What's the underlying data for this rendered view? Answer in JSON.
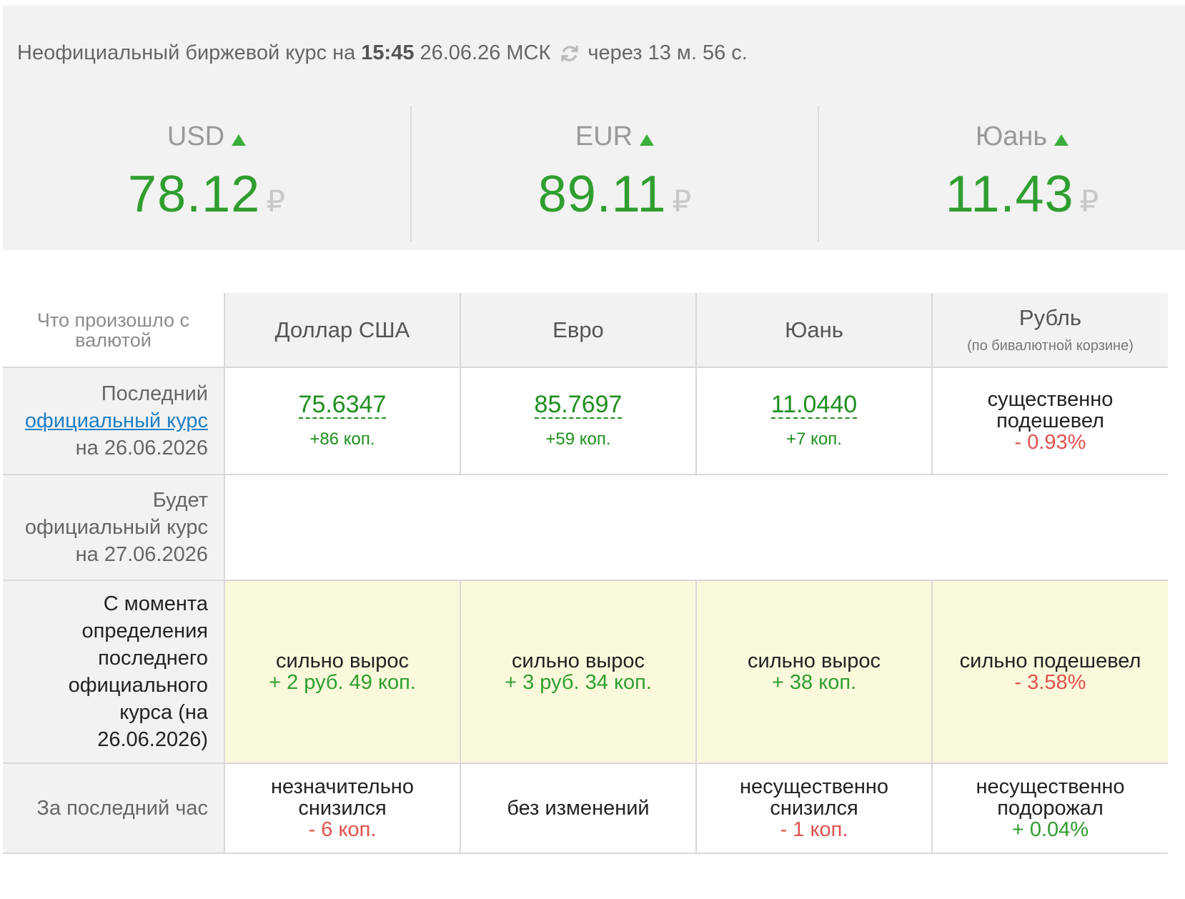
{
  "ticker": {
    "prefix": "Неофициальный биржевой курс на",
    "time": "15:45",
    "date_tz": "26.06.26 МСК",
    "refresh_text": "через 13 м. 56 с.",
    "quotes": [
      {
        "name": "USD",
        "value": "78.12",
        "currency_sign": "₽",
        "trend": "up"
      },
      {
        "name": "EUR",
        "value": "89.11",
        "currency_sign": "₽",
        "trend": "up"
      },
      {
        "name": "Юань",
        "value": "11.43",
        "currency_sign": "₽",
        "trend": "up"
      }
    ]
  },
  "table": {
    "corner": "Что произошло с валютой",
    "headers": [
      {
        "label": "Доллар США"
      },
      {
        "label": "Евро"
      },
      {
        "label": "Юань"
      },
      {
        "label": "Рубль",
        "sub": "(по бивалютной корзине)"
      }
    ],
    "rows": {
      "last_official": {
        "label_line1": "Последний",
        "label_link": "официальный курс",
        "label_line3": "на 26.06.2026",
        "cells": [
          {
            "value": "75.6347",
            "delta": "+86 коп."
          },
          {
            "value": "85.7697",
            "delta": "+59 коп."
          },
          {
            "value": "11.0440",
            "delta": "+7 коп."
          },
          {
            "text": "существенно подешевел",
            "delta": "- 0.93%"
          }
        ]
      },
      "next_official": {
        "label_line1": "Будет",
        "label_line2": "официальный курс",
        "label_line3": "на 27.06.2026"
      },
      "since_official": {
        "label": "С момента определения последнего официального курса (на 26.06.2026)",
        "cells": [
          {
            "text": "сильно вырос",
            "delta": "+ 2 руб. 49 коп."
          },
          {
            "text": "сильно вырос",
            "delta": "+ 3 руб. 34 коп."
          },
          {
            "text": "сильно вырос",
            "delta": "+ 38 коп."
          },
          {
            "text": "сильно подешевел",
            "delta": "- 3.58%"
          }
        ]
      },
      "last_hour": {
        "label": "За последний час",
        "cells": [
          {
            "text": "незначительно снизился",
            "delta": "- 6 коп."
          },
          {
            "text": "без изменений"
          },
          {
            "text": "несущественно снизился",
            "delta": "- 1 коп."
          },
          {
            "text": "несущественно подорожал",
            "delta": "+ 0.04%"
          }
        ]
      }
    }
  },
  "colors": {
    "up": "#2f9e2f",
    "down": "#e0524d",
    "link": "#1e7fc6",
    "highlight": "#fbf9dc"
  },
  "icons": {
    "refresh": "refresh-icon",
    "trend_up": "arrow-up-icon"
  }
}
